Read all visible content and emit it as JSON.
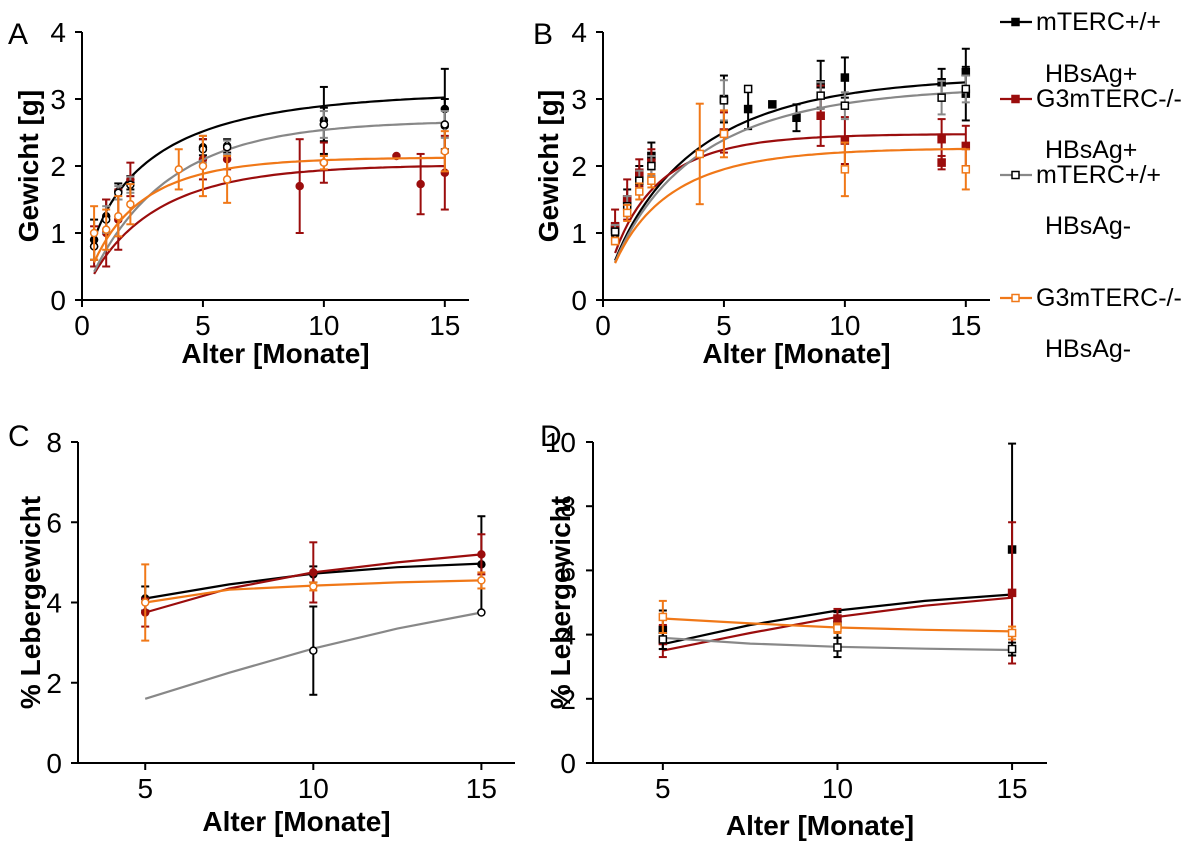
{
  "colors": {
    "mTERC_HBsAg_pos": "#000000",
    "G3mTERC_HBsAg_pos": "#9b0d0d",
    "mTERC_HBsAg_neg": "#888888",
    "G3mTERC_HBsAg_neg": "#f07818"
  },
  "legend": {
    "items": [
      {
        "line1": "mTERC+/+",
        "line2": "HBsAg+",
        "color": "#000000",
        "marker": "square-filled"
      },
      {
        "line1": "G3mTERC-/-",
        "line2": "HBsAg+",
        "color": "#9b0d0d",
        "marker": "square-filled"
      },
      {
        "line1": "mTERC+/+",
        "line2": "HBsAg-",
        "color": "#000000",
        "marker": "square-open",
        "line_color": "#888888"
      },
      {
        "line1": "G3mTERC-/-",
        "line2": "HBsAg-",
        "color": "#f07818",
        "marker": "square-open"
      }
    ]
  },
  "chart_data": [
    {
      "panel": "A",
      "type": "scatter",
      "marker": "circle",
      "xlabel": "Alter [Monate]",
      "ylabel": "Gewicht [g]",
      "xlim": [
        0,
        16
      ],
      "ylim": [
        0,
        4
      ],
      "xticks": [
        0,
        5,
        10,
        15
      ],
      "yticks": [
        0,
        1,
        2,
        3,
        4
      ],
      "xtick_labels": [
        "0",
        "5",
        "10",
        "15"
      ],
      "ytick_labels": [
        "0",
        "1",
        "2",
        "3",
        "4"
      ],
      "series": [
        {
          "key": "mTERC_HBsAg_pos",
          "fill": true,
          "points": [
            [
              0.5,
              0.9,
              0.3
            ],
            [
              1,
              1.25,
              0.25
            ],
            [
              1.5,
              1.62,
              0.12
            ],
            [
              2,
              1.75,
              0.1
            ],
            [
              5,
              2.28,
              0.12
            ],
            [
              6,
              2.3,
              0.1
            ],
            [
              10,
              2.68,
              0.5
            ],
            [
              10,
              2.62,
              0.25
            ],
            [
              15,
              2.85,
              0.6
            ],
            [
              15,
              2.6,
              0.4
            ]
          ],
          "fit": {
            "a": 3.12,
            "k": 0.55,
            "b": 0.68
          }
        },
        {
          "key": "G3mTERC_HBsAg_pos",
          "fill": true,
          "points": [
            [
              0.5,
              0.8,
              0.3
            ],
            [
              1,
              1.0,
              0.5
            ],
            [
              1.5,
              1.2,
              0.45
            ],
            [
              2,
              1.8,
              0.25
            ],
            [
              5,
              2.1,
              0.3
            ],
            [
              6,
              2.1,
              0.15
            ],
            [
              9,
              1.7,
              0.7
            ],
            [
              10,
              2.05,
              0.3
            ],
            [
              13,
              2.15,
              0
            ],
            [
              14,
              1.73,
              0.45
            ],
            [
              15,
              1.9,
              0.55
            ]
          ],
          "fit": {
            "a": 2.02,
            "k": 0.4,
            "b": 0.9
          }
        },
        {
          "key": "mTERC_HBsAg_neg",
          "fill": false,
          "points": [
            [
              0.5,
              0.8,
              0.2
            ],
            [
              1,
              1.2,
              0.2
            ],
            [
              1.5,
              1.6,
              0.1
            ],
            [
              2,
              1.72,
              0.12
            ],
            [
              5,
              2.25,
              0.2
            ],
            [
              6,
              2.28,
              0.1
            ],
            [
              10,
              2.62,
              0.2
            ],
            [
              15,
              2.62,
              0.2
            ]
          ],
          "fit": {
            "a": 2.68,
            "k": 0.33,
            "b": 0.95
          }
        },
        {
          "key": "G3mTERC_HBsAg_neg",
          "fill": false,
          "points": [
            [
              0.5,
              1.0,
              0.4
            ],
            [
              1,
              1.05,
              0.3
            ],
            [
              1.5,
              1.25,
              0.3
            ],
            [
              2,
              1.43,
              0.3
            ],
            [
              4,
              1.95,
              0.3
            ],
            [
              5,
              2.0,
              0.45
            ],
            [
              6,
              1.8,
              0.35
            ],
            [
              10,
              2.05,
              0.1
            ],
            [
              15,
              2.22,
              0.3
            ]
          ],
          "fit": {
            "a": 2.13,
            "k": 0.55,
            "b": 0.85
          }
        }
      ]
    },
    {
      "panel": "B",
      "type": "scatter",
      "marker": "square",
      "xlabel": "Alter [Monate]",
      "ylabel": "Gewicht [g]",
      "xlim": [
        0,
        16
      ],
      "ylim": [
        0,
        4
      ],
      "xticks": [
        0,
        5,
        10,
        15
      ],
      "yticks": [
        0,
        1,
        2,
        3,
        4
      ],
      "xtick_labels": [
        "0",
        "5",
        "10",
        "15"
      ],
      "ytick_labels": [
        "0",
        "1",
        "2",
        "3",
        "4"
      ],
      "series": [
        {
          "key": "mTERC_HBsAg_pos",
          "fill": true,
          "points": [
            [
              0.5,
              1.05,
              0.1
            ],
            [
              1,
              1.5,
              0.15
            ],
            [
              1.5,
              1.85,
              0.15
            ],
            [
              2,
              2.15,
              0.2
            ],
            [
              5,
              3.0,
              0.35
            ],
            [
              6,
              2.85,
              0.3
            ],
            [
              7,
              2.92,
              0
            ],
            [
              8,
              2.72,
              0.2
            ],
            [
              9,
              3.22,
              0.35
            ],
            [
              10,
              3.32,
              0.3
            ],
            [
              14,
              3.25,
              0.2
            ],
            [
              15,
              3.4,
              0.35
            ],
            [
              15,
              3.08,
              0.4
            ]
          ],
          "fit": {
            "a": 3.35,
            "k": 0.35,
            "b": 0.85
          }
        },
        {
          "key": "G3mTERC_HBsAg_pos",
          "fill": true,
          "points": [
            [
              0.5,
              1.1,
              0.25
            ],
            [
              1,
              1.5,
              0.3
            ],
            [
              1.5,
              1.9,
              0.2
            ],
            [
              2,
              2.05,
              0.2
            ],
            [
              5,
              2.5,
              0.3
            ],
            [
              9,
              2.75,
              0.45
            ],
            [
              10,
              2.38,
              0.35
            ],
            [
              14,
              2.4,
              0.3
            ],
            [
              14,
              2.05,
              0.1
            ],
            [
              15,
              2.3,
              0.3
            ]
          ],
          "fit": {
            "a": 2.48,
            "k": 0.6,
            "b": 0.85
          }
        },
        {
          "key": "mTERC_HBsAg_neg",
          "fill": false,
          "points": [
            [
              0.5,
              1.02,
              0.1
            ],
            [
              1,
              1.4,
              0.15
            ],
            [
              1.5,
              1.78,
              0.15
            ],
            [
              2,
              2.0,
              0.15
            ],
            [
              5,
              2.98,
              0.3
            ],
            [
              6,
              3.15,
              0
            ],
            [
              9,
              3.05,
              0.2
            ],
            [
              10,
              2.9,
              0.2
            ],
            [
              14,
              3.02,
              0.25
            ],
            [
              15,
              3.15,
              0.2
            ]
          ],
          "fit": {
            "a": 3.2,
            "k": 0.35,
            "b": 0.85
          }
        },
        {
          "key": "G3mTERC_HBsAg_neg",
          "fill": false,
          "points": [
            [
              0.5,
              0.88,
              0.05
            ],
            [
              1,
              1.3,
              0.12
            ],
            [
              1.5,
              1.62,
              0.12
            ],
            [
              2,
              1.78,
              0.1
            ],
            [
              4,
              2.18,
              0.75
            ],
            [
              5,
              2.48,
              0.35
            ],
            [
              10,
              1.95,
              0.4
            ],
            [
              15,
              1.95,
              0.3
            ]
          ],
          "fit": {
            "a": 2.27,
            "k": 0.5,
            "b": 0.85
          }
        }
      ]
    },
    {
      "panel": "C",
      "type": "scatter",
      "marker": "circle",
      "xlabel": "Alter [Monate]",
      "ylabel": "% Lebergewicht",
      "xlim": [
        3,
        16
      ],
      "ylim": [
        0,
        8
      ],
      "xticks": [
        5,
        10,
        15
      ],
      "yticks": [
        0,
        2,
        4,
        6,
        8
      ],
      "xtick_labels": [
        "5",
        "10",
        "15"
      ],
      "ytick_labels": [
        "0",
        "2",
        "4",
        "6",
        "8"
      ],
      "series": [
        {
          "key": "mTERC_HBsAg_pos",
          "fill": true,
          "points": [
            [
              5,
              4.1,
              0.3
            ],
            [
              10,
              4.7,
              0.2
            ],
            [
              15,
              4.95,
              1.2
            ]
          ],
          "curve": [
            [
              5,
              4.1
            ],
            [
              7.5,
              4.45
            ],
            [
              10,
              4.72
            ],
            [
              12.5,
              4.88
            ],
            [
              15,
              4.97
            ]
          ]
        },
        {
          "key": "G3mTERC_HBsAg_pos",
          "fill": true,
          "points": [
            [
              5,
              3.75,
              0.35
            ],
            [
              10,
              4.75,
              0.75
            ],
            [
              15,
              5.2,
              0.5
            ]
          ],
          "curve": [
            [
              5,
              3.75
            ],
            [
              7.5,
              4.35
            ],
            [
              10,
              4.75
            ],
            [
              12.5,
              5.0
            ],
            [
              15,
              5.2
            ]
          ]
        },
        {
          "key": "mTERC_HBsAg_neg",
          "fill": false,
          "points": [
            [
              10,
              2.8,
              1.1
            ],
            [
              15,
              3.75,
              0
            ]
          ],
          "curve": [
            [
              5,
              1.6
            ],
            [
              7.5,
              2.25
            ],
            [
              10,
              2.85
            ],
            [
              12.5,
              3.35
            ],
            [
              15,
              3.75
            ]
          ]
        },
        {
          "key": "G3mTERC_HBsAg_neg",
          "fill": false,
          "points": [
            [
              5,
              4.0,
              0.95
            ],
            [
              10,
              4.4,
              0.1
            ],
            [
              15,
              4.55,
              0.2
            ]
          ],
          "curve": [
            [
              5,
              4.0
            ],
            [
              7.5,
              4.32
            ],
            [
              10,
              4.42
            ],
            [
              12.5,
              4.5
            ],
            [
              15,
              4.55
            ]
          ]
        }
      ]
    },
    {
      "panel": "D",
      "type": "scatter",
      "marker": "square",
      "xlabel": "Alter [Monate]",
      "ylabel": "% Lebergewicht",
      "xlim": [
        3,
        16
      ],
      "ylim": [
        0,
        10
      ],
      "xticks": [
        5,
        10,
        15
      ],
      "yticks": [
        0,
        2,
        4,
        6,
        8,
        10
      ],
      "xtick_labels": [
        "5",
        "10",
        "15"
      ],
      "ytick_labels": [
        "0",
        "2",
        "4",
        "6",
        "8",
        "10"
      ],
      "series": [
        {
          "key": "mTERC_HBsAg_pos",
          "fill": true,
          "points": [
            [
              5,
              4.15,
              0.6
            ],
            [
              10,
              4.3,
              0.4
            ],
            [
              15,
              6.65,
              3.3
            ]
          ],
          "curve": [
            [
              5,
              3.7
            ],
            [
              7.5,
              4.3
            ],
            [
              10,
              4.75
            ],
            [
              12.5,
              5.05
            ],
            [
              15,
              5.25
            ]
          ]
        },
        {
          "key": "G3mTERC_HBsAg_pos",
          "fill": true,
          "points": [
            [
              5,
              3.8,
              0.5
            ],
            [
              10,
              4.5,
              0.3
            ],
            [
              15,
              5.3,
              2.2
            ]
          ],
          "curve": [
            [
              5,
              3.5
            ],
            [
              7.5,
              4.05
            ],
            [
              10,
              4.55
            ],
            [
              12.5,
              4.9
            ],
            [
              15,
              5.15
            ]
          ]
        },
        {
          "key": "mTERC_HBsAg_neg",
          "fill": false,
          "points": [
            [
              5,
              3.85,
              0.3
            ],
            [
              10,
              3.6,
              0.3
            ],
            [
              15,
              3.55,
              0.2
            ]
          ],
          "curve": [
            [
              5,
              3.9
            ],
            [
              7.5,
              3.72
            ],
            [
              10,
              3.62
            ],
            [
              12.5,
              3.56
            ],
            [
              15,
              3.52
            ]
          ]
        },
        {
          "key": "G3mTERC_HBsAg_neg",
          "fill": false,
          "points": [
            [
              5,
              4.55,
              0.5
            ],
            [
              10,
              4.2,
              0.15
            ],
            [
              15,
              4.05,
              0.2
            ]
          ],
          "curve": [
            [
              5,
              4.5
            ],
            [
              7.5,
              4.35
            ],
            [
              10,
              4.22
            ],
            [
              12.5,
              4.15
            ],
            [
              15,
              4.1
            ]
          ]
        }
      ]
    }
  ]
}
